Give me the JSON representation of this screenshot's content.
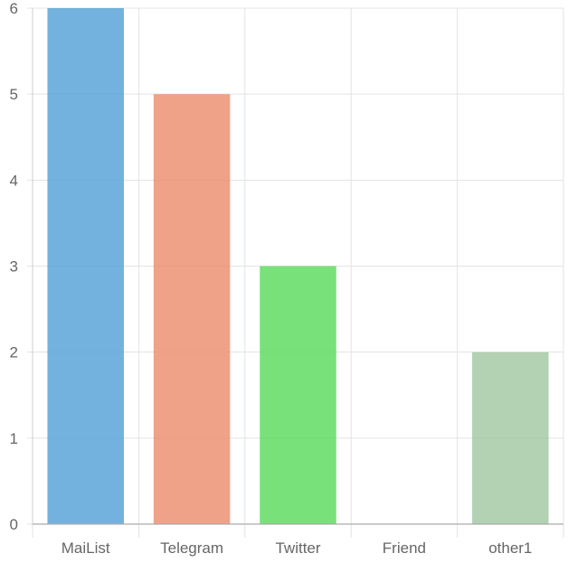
{
  "chart_data": {
    "type": "bar",
    "title": "",
    "xlabel": "",
    "ylabel": "",
    "categories": [
      "MaiList",
      "Telegram",
      "Twitter",
      "Friend",
      "other1"
    ],
    "values": [
      6,
      5,
      3,
      0,
      2
    ],
    "colors": [
      "#5aa5d8",
      "#ec9273",
      "#62dc62",
      "#aaaaaa",
      "#a6c9a6"
    ],
    "ylim": [
      0,
      6
    ],
    "yticks": [
      "0",
      "1",
      "2",
      "3",
      "4",
      "5",
      "6"
    ],
    "grid": true,
    "legend": "none"
  }
}
